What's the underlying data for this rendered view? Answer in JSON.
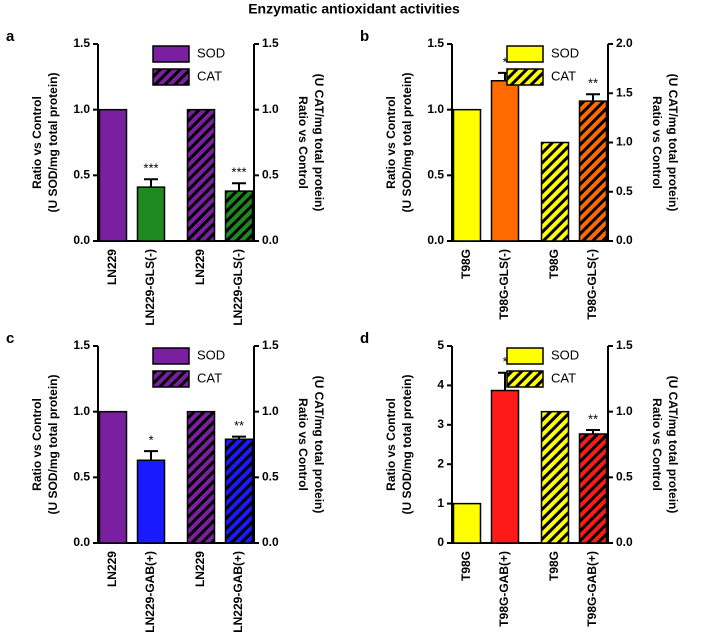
{
  "title": "Enzymatic antioxidant activities",
  "chart_data": [
    {
      "type": "bar",
      "panel": "a",
      "legend": "upper center",
      "ylabel": [
        "Ratio vs Control",
        "(U SOD/mg total protein)"
      ],
      "y2label": [
        "Ratio vs Control",
        "(U CAT/mg total protein)"
      ],
      "categories": [
        "LN229",
        "LN229-GLS(-)",
        "LN229",
        "LN229-GLS(-)"
      ],
      "ylim": [
        0,
        1.5
      ],
      "yticks": [
        {
          "value": 0,
          "label": "0.0"
        },
        {
          "value": 0.5,
          "label": "0.5"
        },
        {
          "value": 1,
          "label": "1.0"
        },
        {
          "value": 1.5,
          "label": "1.5"
        }
      ],
      "y2lim": [
        0,
        1.5
      ],
      "y2ticks": [
        {
          "value": 0,
          "label": "0.0"
        },
        {
          "value": 0.5,
          "label": "0.5"
        },
        {
          "value": 1,
          "label": "1.0"
        },
        {
          "value": 1.5,
          "label": "1.5"
        }
      ],
      "series": [
        {
          "name": "SOD",
          "color": "#7a1fa0",
          "bar_colors": [
            "#7a1fa0",
            "#1f8a1f",
            null,
            null
          ],
          "hatch": false,
          "values": [
            1.0,
            0.41,
            null,
            null
          ],
          "errors": [
            null,
            0.06,
            null,
            null
          ],
          "annotations": [
            null,
            "***",
            null,
            null
          ]
        },
        {
          "name": "CAT",
          "color": "#7a1fa0",
          "bar_colors": [
            null,
            null,
            "#7a1fa0",
            "#1f8a1f"
          ],
          "hatch": true,
          "axis": "y2",
          "values": [
            null,
            null,
            1.0,
            0.38
          ],
          "errors": [
            null,
            null,
            null,
            0.06
          ],
          "annotations": [
            null,
            null,
            null,
            "***"
          ]
        }
      ]
    },
    {
      "type": "bar",
      "panel": "b",
      "legend": "upper center",
      "ylabel": [
        "Ratio vs Control",
        "(U SOD/mg total protein)"
      ],
      "y2label": [
        "Ratio vs Control",
        "(U CAT/mg total protein)"
      ],
      "categories": [
        "T98G",
        "T98G-GLS(-)",
        "T98G",
        "T98G-GLS(-)"
      ],
      "ylim": [
        0,
        1.5
      ],
      "yticks": [
        {
          "value": 0,
          "label": "0.0"
        },
        {
          "value": 0.5,
          "label": "0.5"
        },
        {
          "value": 1,
          "label": "1.0"
        },
        {
          "value": 1.5,
          "label": "1.5"
        }
      ],
      "y2lim": [
        0,
        2
      ],
      "y2ticks": [
        {
          "value": 0,
          "label": "0.0"
        },
        {
          "value": 0.5,
          "label": "0.5"
        },
        {
          "value": 1,
          "label": "1.0"
        },
        {
          "value": 1.5,
          "label": "1.5"
        },
        {
          "value": 2,
          "label": "2.0"
        }
      ],
      "series": [
        {
          "name": "SOD",
          "color": "#ffff00",
          "bar_colors": [
            "#ffff00",
            "#ff6a00",
            null,
            null
          ],
          "hatch": false,
          "values": [
            1.0,
            1.22,
            null,
            null
          ],
          "errors": [
            null,
            0.06,
            null,
            null
          ],
          "annotations": [
            null,
            "*",
            null,
            null
          ]
        },
        {
          "name": "CAT",
          "color": "#ffff00",
          "bar_colors": [
            null,
            null,
            "#ffff00",
            "#ff6a00"
          ],
          "hatch": true,
          "axis": "y2",
          "values": [
            null,
            null,
            1.0,
            1.42
          ],
          "errors": [
            null,
            null,
            null,
            0.07
          ],
          "annotations": [
            null,
            null,
            null,
            "**"
          ]
        }
      ]
    },
    {
      "type": "bar",
      "panel": "c",
      "legend": "upper center",
      "ylabel": [
        "Ratio vs Control",
        "(U SOD/mg total protein)"
      ],
      "y2label": [
        "Ratio vs Control",
        "(U CAT/mg total protein)"
      ],
      "categories": [
        "LN229",
        "LN229-GAB(+)",
        "LN229",
        "LN229-GAB(+)"
      ],
      "ylim": [
        0,
        1.5
      ],
      "yticks": [
        {
          "value": 0,
          "label": "0.0"
        },
        {
          "value": 0.5,
          "label": "0.5"
        },
        {
          "value": 1,
          "label": "1.0"
        },
        {
          "value": 1.5,
          "label": "1.5"
        }
      ],
      "y2lim": [
        0,
        1.5
      ],
      "y2ticks": [
        {
          "value": 0,
          "label": "0.0"
        },
        {
          "value": 0.5,
          "label": "0.5"
        },
        {
          "value": 1,
          "label": "1.0"
        },
        {
          "value": 1.5,
          "label": "1.5"
        }
      ],
      "series": [
        {
          "name": "SOD",
          "color": "#7a1fa0",
          "bar_colors": [
            "#7a1fa0",
            "#1a1aff",
            null,
            null
          ],
          "hatch": false,
          "values": [
            1.0,
            0.63,
            null,
            null
          ],
          "errors": [
            null,
            0.07,
            null,
            null
          ],
          "annotations": [
            null,
            "*",
            null,
            null
          ]
        },
        {
          "name": "CAT",
          "color": "#7a1fa0",
          "bar_colors": [
            null,
            null,
            "#7a1fa0",
            "#1a1aff"
          ],
          "hatch": true,
          "axis": "y2",
          "values": [
            null,
            null,
            1.0,
            0.79
          ],
          "errors": [
            null,
            null,
            null,
            0.02
          ],
          "annotations": [
            null,
            null,
            null,
            "**"
          ]
        }
      ]
    },
    {
      "type": "bar",
      "panel": "d",
      "legend": "upper center",
      "ylabel": [
        "Ratio vs Control",
        "(U SOD/mg total protein)"
      ],
      "y2label": [
        "Ratio vs Control",
        "(U CAT/mg total protein)"
      ],
      "categories": [
        "T98G",
        "T98G-GAB(+)",
        "T98G",
        "T98G-GAB(+)"
      ],
      "ylim": [
        0,
        5
      ],
      "yticks": [
        0,
        1,
        2,
        3,
        4,
        5
      ],
      "y2lim": [
        0,
        1.5
      ],
      "y2ticks": [
        {
          "value": 0,
          "label": "0.0"
        },
        {
          "value": 0.5,
          "label": "0.5"
        },
        {
          "value": 1,
          "label": "1.0"
        },
        {
          "value": 1.5,
          "label": "1.5"
        }
      ],
      "series": [
        {
          "name": "SOD",
          "color": "#ffff00",
          "bar_colors": [
            "#ffff00",
            "#ff1a1a",
            null,
            null
          ],
          "hatch": false,
          "values": [
            1.0,
            3.87,
            null,
            null
          ],
          "errors": [
            null,
            0.45,
            null,
            null
          ],
          "annotations": [
            null,
            "*",
            null,
            null
          ]
        },
        {
          "name": "CAT",
          "color": "#ffff00",
          "bar_colors": [
            null,
            null,
            "#ffff00",
            "#ff1a1a"
          ],
          "hatch": true,
          "axis": "y2",
          "values": [
            null,
            null,
            1.0,
            0.83
          ],
          "errors": [
            null,
            null,
            null,
            0.03
          ],
          "annotations": [
            null,
            null,
            null,
            "**"
          ]
        }
      ]
    }
  ]
}
